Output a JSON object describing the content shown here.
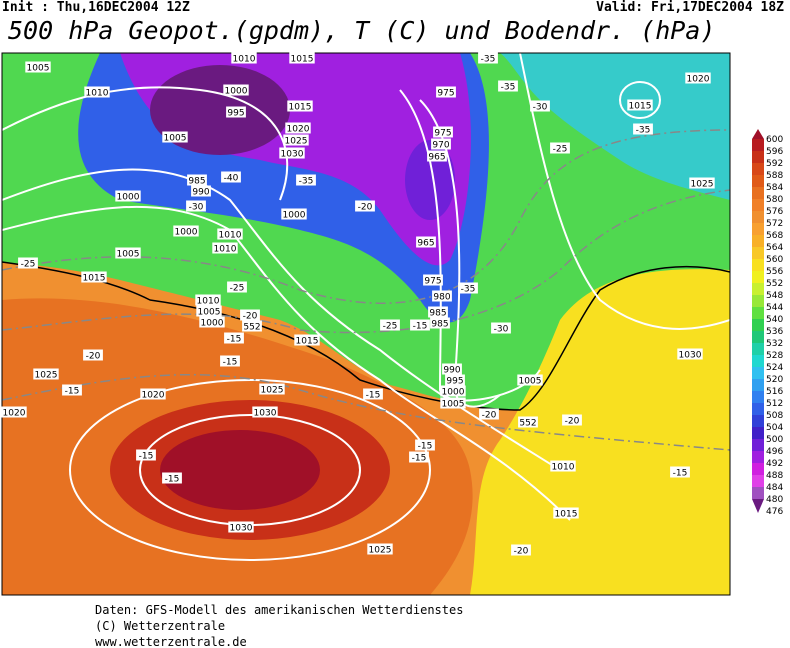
{
  "header": {
    "init": "Init : Thu,16DEC2004 12Z",
    "valid": "Valid: Fri,17DEC2004 18Z",
    "title": "500 hPa Geopot.(gpdm), T (C) und Bodendr. (hPa)"
  },
  "colorbar": {
    "labels": [
      "600",
      "596",
      "592",
      "588",
      "584",
      "580",
      "576",
      "572",
      "568",
      "564",
      "560",
      "556",
      "552",
      "548",
      "544",
      "540",
      "536",
      "532",
      "528",
      "524",
      "520",
      "516",
      "512",
      "508",
      "504",
      "500",
      "496",
      "492",
      "488",
      "484",
      "480",
      "476"
    ],
    "colors": [
      "#a01028",
      "#b81c20",
      "#c83018",
      "#d84818",
      "#e05a18",
      "#e87020",
      "#f08028",
      "#f09030",
      "#f8a030",
      "#f8b028",
      "#f8c828",
      "#f8e020",
      "#f0f020",
      "#c8f030",
      "#98e838",
      "#60e040",
      "#30d050",
      "#20c878",
      "#20d0a8",
      "#20d8d0",
      "#30c0f0",
      "#30a0f0",
      "#3080f0",
      "#3060e8",
      "#3040d8",
      "#4020c8",
      "#7020d8",
      "#a020e0",
      "#d020e0",
      "#e040e8",
      "#a050c0",
      "#6a1a80"
    ]
  },
  "map_labels": [
    "1005",
    "1010",
    "1000",
    "995",
    "1005",
    "1010",
    "1015",
    "1015",
    "1020",
    "1025",
    "1030",
    "975",
    "975",
    "970",
    "965",
    "965",
    "975",
    "980",
    "985",
    "985",
    "990",
    "995",
    "1000",
    "1005",
    "1005",
    "1010",
    "1015",
    "1025",
    "1030",
    "1020",
    "1015",
    "1000",
    "985",
    "990",
    "1000",
    "1010",
    "1010",
    "1000",
    "1005",
    "1015",
    "1010",
    "1005",
    "1000",
    "1015",
    "1025",
    "1020",
    "1025",
    "1030",
    "1020",
    "1030",
    "1025",
    "-15",
    "-15",
    "-15",
    "-20",
    "-25",
    "-25",
    "-20",
    "-15",
    "-15",
    "-15",
    "-20",
    "-20",
    "-15",
    "-15",
    "-20",
    "-15",
    "-35",
    "-30",
    "-35",
    "-30",
    "-25",
    "-35",
    "-40",
    "-35",
    "-30",
    "-20",
    "-25",
    "-15",
    "-35",
    "552",
    "552"
  ],
  "footer": [
    "Daten: GFS-Modell des amerikanischen Wetterdienstes",
    "(C) Wetterzentrale",
    "www.wetterzentrale.de"
  ]
}
